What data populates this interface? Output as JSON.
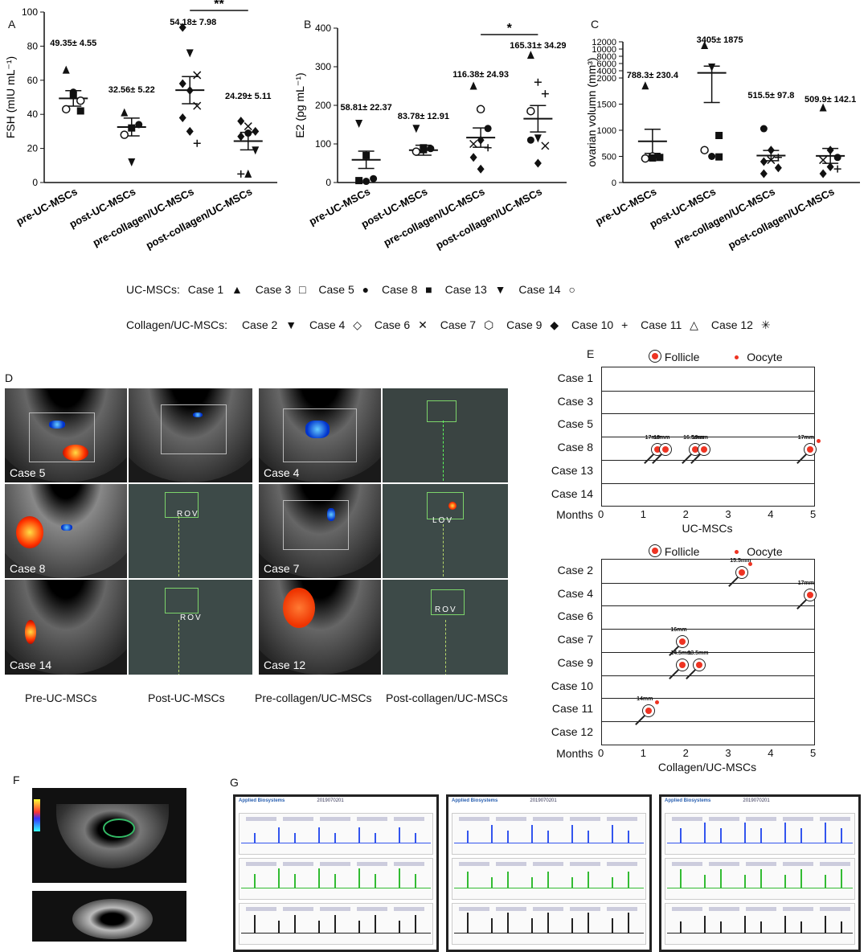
{
  "panels": {
    "A": "A",
    "B": "B",
    "C": "C",
    "D": "D",
    "E": "E",
    "F": "F",
    "G": "G"
  },
  "chart_data": [
    {
      "type": "scatter",
      "panel": "A",
      "ylabel": "FSH (mIU mL⁻¹)",
      "ylim": [
        0,
        100
      ],
      "yticks": [
        "0",
        "20",
        "40",
        "60",
        "80",
        "100"
      ],
      "categories": [
        "pre-UC-MSCs",
        "post-UC-MSCs",
        "pre-collagen/UC-MSCs",
        "post-collagen/UC-MSCs"
      ],
      "means": [
        49.35,
        32.56,
        54.18,
        24.29
      ],
      "sem": [
        4.55,
        5.22,
        7.98,
        5.11
      ],
      "labels": [
        "49.35± 4.55",
        "32.56± 5.22",
        "54.18± 7.98",
        "24.29± 5.11"
      ],
      "significance": "**",
      "points": [
        [
          [
            "tri",
            66
          ],
          [
            "sq",
            51
          ],
          [
            "sq",
            42
          ],
          [
            "circ",
            43
          ],
          [
            "circ",
            53
          ],
          [
            "circ",
            48
          ]
        ],
        [
          [
            "tri",
            41
          ],
          [
            "sq",
            32
          ],
          [
            "circ",
            34
          ],
          [
            "circ",
            28
          ],
          [
            "tridown",
            12
          ]
        ],
        [
          [
            "dia",
            91
          ],
          [
            "tridown",
            76
          ],
          [
            "x",
            63
          ],
          [
            "dia",
            58
          ],
          [
            "dia",
            54
          ],
          [
            "x",
            45
          ],
          [
            "dia",
            38
          ],
          [
            "dia",
            30
          ],
          [
            "plus",
            23
          ]
        ],
        [
          [
            "dia",
            36
          ],
          [
            "x",
            33
          ],
          [
            "dia",
            30
          ],
          [
            "dia",
            27
          ],
          [
            "circ",
            29
          ],
          [
            "tridown",
            19
          ],
          [
            "plus",
            5
          ],
          [
            "tri",
            5
          ]
        ]
      ]
    },
    {
      "type": "scatter",
      "panel": "B",
      "ylabel": "E2 (pg mL⁻¹)",
      "ylim": [
        0,
        400
      ],
      "yticks": [
        "0",
        "100",
        "200",
        "300",
        "400"
      ],
      "categories": [
        "pre-UC-MSCs",
        "post-UC-MSCs",
        "pre-collagen/UC-MSCs",
        "post-collagen/UC-MSCs"
      ],
      "means": [
        58.81,
        83.78,
        116.38,
        165.31
      ],
      "sem": [
        22.37,
        12.91,
        24.93,
        34.29
      ],
      "labels": [
        "58.81± 22.37",
        "83.78± 12.91",
        "116.38± 24.93",
        "165.31± 34.29"
      ],
      "significance": "*",
      "points": [
        [
          [
            "tridown",
            153
          ],
          [
            "sq",
            70
          ],
          [
            "circ",
            10
          ],
          [
            "sq",
            5
          ],
          [
            "circ",
            3
          ]
        ],
        [
          [
            "tridown",
            140
          ],
          [
            "sq",
            90
          ],
          [
            "circ",
            88
          ],
          [
            "circ",
            80
          ],
          [
            "sq",
            85
          ]
        ],
        [
          [
            "tri",
            250
          ],
          [
            "circ",
            190
          ],
          [
            "circ",
            140
          ],
          [
            "x",
            100
          ],
          [
            "dia",
            110
          ],
          [
            "plus",
            90
          ],
          [
            "dia",
            65
          ],
          [
            "dia",
            35
          ]
        ],
        [
          [
            "tri",
            330
          ],
          [
            "plus",
            260
          ],
          [
            "plus",
            230
          ],
          [
            "circ",
            185
          ],
          [
            "tridown",
            115
          ],
          [
            "x",
            95
          ],
          [
            "circ",
            110
          ],
          [
            "dia",
            50
          ]
        ]
      ]
    },
    {
      "type": "scatter",
      "panel": "C",
      "ylabel": "ovarian volumn (mm³)",
      "ylim": [
        0,
        12000
      ],
      "yticks": [
        "0",
        "500",
        "1000",
        "1500",
        "2000",
        "4000",
        "6000",
        "8000",
        "10000",
        "12000"
      ],
      "categories": [
        "pre-UC-MSCs",
        "post-UC-MSCs",
        "pre-collagen/UC-MSCs",
        "post-collagen/UC-MSCs"
      ],
      "means": [
        788.3,
        3405,
        515.5,
        509.9
      ],
      "sem": [
        230.4,
        1875,
        97.8,
        142.1
      ],
      "labels": [
        "788.3± 230.4",
        "3405± 1875",
        "515.5± 97.8",
        "509.9± 142.1"
      ],
      "points": [
        [
          [
            "tri",
            1850
          ],
          [
            "circ",
            500
          ],
          [
            "sq",
            480
          ],
          [
            "circ",
            460
          ],
          [
            "sq",
            470
          ]
        ],
        [
          [
            "tri",
            11000
          ],
          [
            "tridown",
            5000
          ],
          [
            "sq",
            900
          ],
          [
            "circ",
            620
          ],
          [
            "circ",
            500
          ],
          [
            "sq",
            490
          ]
        ],
        [
          [
            "circ",
            1030
          ],
          [
            "dia",
            620
          ],
          [
            "plus",
            480
          ],
          [
            "dia",
            400
          ],
          [
            "x",
            430
          ],
          [
            "dia",
            280
          ],
          [
            "dia",
            170
          ]
        ],
        [
          [
            "tri",
            1430
          ],
          [
            "dia",
            620
          ],
          [
            "circ",
            480
          ],
          [
            "x",
            430
          ],
          [
            "dia",
            300
          ],
          [
            "plus",
            260
          ],
          [
            "dia",
            170
          ]
        ]
      ]
    }
  ],
  "legend": {
    "uc_title": "UC-MSCs:",
    "uc_items": [
      {
        "label": "Case 1",
        "sym": "▲"
      },
      {
        "label": "Case 3",
        "sym": "□"
      },
      {
        "label": "Case 5",
        "sym": "●"
      },
      {
        "label": "Case 8",
        "sym": "■"
      },
      {
        "label": "Case 13",
        "sym": "▼"
      },
      {
        "label": "Case 14",
        "sym": "○"
      }
    ],
    "col_title": "Collagen/UC-MSCs:",
    "col_items": [
      {
        "label": "Case 2",
        "sym": "▼"
      },
      {
        "label": "Case 4",
        "sym": "◇"
      },
      {
        "label": "Case 6",
        "sym": "✕"
      },
      {
        "label": "Case 7",
        "sym": "⬡"
      },
      {
        "label": "Case 9",
        "sym": "◆"
      },
      {
        "label": "Case 10",
        "sym": "+"
      },
      {
        "label": "Case 11",
        "sym": "△"
      },
      {
        "label": "Case 12",
        "sym": "✳"
      }
    ]
  },
  "ultrasound": {
    "cases": [
      "Case 5",
      "Case 8",
      "Case 14",
      "Case 4",
      "Case 7",
      "Case 12"
    ],
    "rov": [
      "ROV",
      "ROV",
      "LOV",
      "ROV"
    ],
    "captions": [
      "Pre-UC-MSCs",
      "Post-UC-MSCs",
      "Pre-collagen/UC-MSCs",
      "Post-collagen/UC-MSCs"
    ]
  },
  "timeline": {
    "legend_follicle": "Follicle",
    "legend_oocyte": "Oocyte",
    "months_label": "Months",
    "ticks": [
      "0",
      "1",
      "2",
      "3",
      "4",
      "5"
    ],
    "uc": {
      "title": "UC-MSCs",
      "cases": [
        "Case 1",
        "Case 3",
        "Case 5",
        "Case 8",
        "Case 13",
        "Case 14"
      ],
      "follicles": [
        {
          "row": 3,
          "month": 1.3,
          "size": "17mm",
          "oocyte": false
        },
        {
          "row": 3,
          "month": 1.5,
          "size": "18mm",
          "oocyte": false
        },
        {
          "row": 3,
          "month": 2.2,
          "size": "16.5mm",
          "oocyte": false
        },
        {
          "row": 3,
          "month": 2.4,
          "size": "19mm",
          "oocyte": false
        },
        {
          "row": 3,
          "month": 4.9,
          "size": "17mm",
          "oocyte": true
        }
      ]
    },
    "col": {
      "title": "Collagen/UC-MSCs",
      "cases": [
        "Case 2",
        "Case 4",
        "Case 6",
        "Case 7",
        "Case 9",
        "Case 10",
        "Case 11",
        "Case 12"
      ],
      "follicles": [
        {
          "row": 0,
          "month": 3.3,
          "size": "15.5mm",
          "oocyte": true
        },
        {
          "row": 1,
          "month": 4.9,
          "size": "17mm",
          "oocyte": false
        },
        {
          "row": 3,
          "month": 1.9,
          "size": "16mm",
          "oocyte": false
        },
        {
          "row": 4,
          "month": 1.9,
          "size": "14.5mm",
          "oocyte": false
        },
        {
          "row": 4,
          "month": 2.3,
          "size": "13.5mm",
          "oocyte": false
        },
        {
          "row": 6,
          "month": 1.1,
          "size": "14mm",
          "oocyte": true
        }
      ]
    }
  },
  "reports": {
    "brand": "Applied Biosystems",
    "titles": [
      "2019070201",
      "2019070201",
      "2019070201"
    ]
  },
  "colors": {
    "follicle_red": "#e32222",
    "peak_blue": "#3355ee",
    "peak_green": "#33bb33",
    "peak_black": "#222222"
  }
}
